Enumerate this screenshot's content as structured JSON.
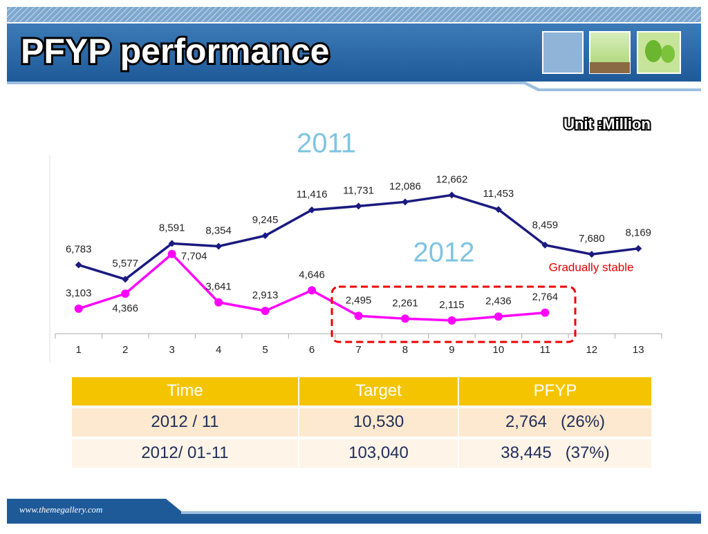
{
  "header": {
    "title": "PFYP performance"
  },
  "unit": "Unit :Million",
  "chart_data": {
    "type": "line",
    "categories": [
      "1",
      "2",
      "3",
      "4",
      "5",
      "6",
      "7",
      "8",
      "9",
      "10",
      "11",
      "12",
      "13"
    ],
    "series": [
      {
        "name": "2011",
        "color": "#1a1a80",
        "values": [
          6783,
          5577,
          8591,
          8354,
          9245,
          11416,
          11731,
          12086,
          12662,
          11453,
          8459,
          7680,
          8169
        ],
        "value_labels": [
          "6,783",
          "5,577",
          "8,591",
          "8,354",
          "9,245",
          "11,416",
          "11,731",
          "12,086",
          "12,662",
          "11,453",
          "8,459",
          "7,680",
          "8,169"
        ]
      },
      {
        "name": "2012",
        "color": "#ff00ff",
        "values": [
          3103,
          4366,
          7704,
          3641,
          2913,
          4646,
          2495,
          2261,
          2115,
          2436,
          2764,
          null,
          null
        ],
        "value_labels": [
          "3,103",
          "4,366",
          "7,704",
          "3,641",
          "2,913",
          "4,646",
          "2,495",
          "2,261",
          "2,115",
          "2,436",
          "2,764",
          null,
          null
        ]
      }
    ],
    "ylim": [
      1000,
      16000
    ],
    "annotation": "Gradually stable"
  },
  "table": {
    "header": [
      "Time",
      "Target",
      "PFYP"
    ],
    "rows": [
      [
        "2012 / 11",
        "10,530",
        "2,764   (26%)"
      ],
      [
        "2012/ 01-11",
        "103,040",
        "38,445   (37%)"
      ]
    ]
  },
  "footer": "www.themegallery.com"
}
